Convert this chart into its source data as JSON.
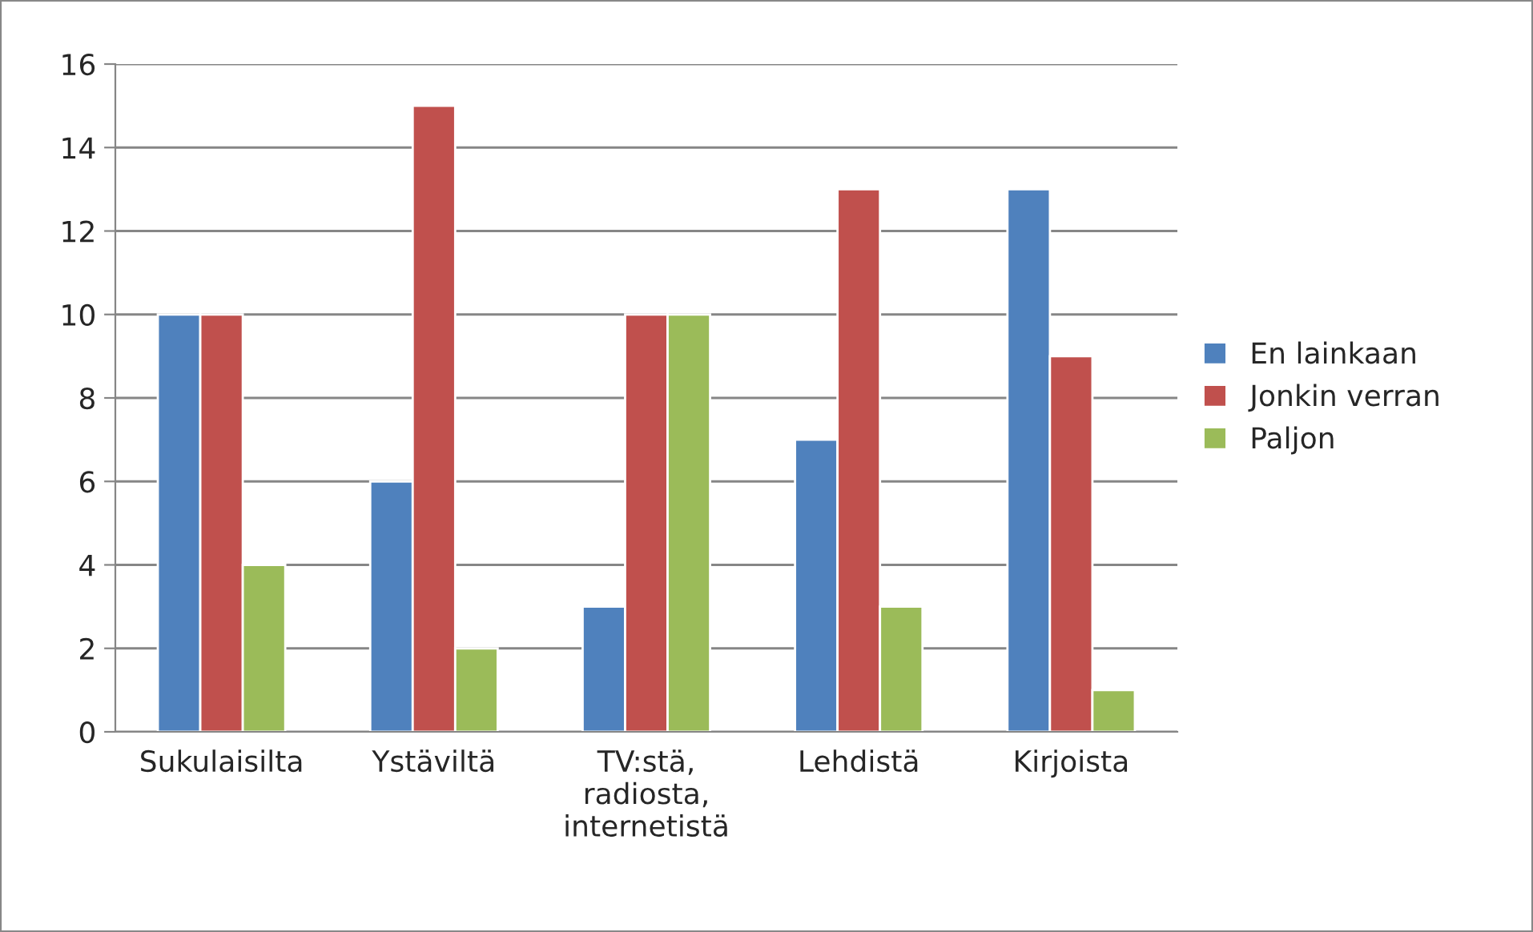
{
  "chart_data": {
    "type": "bar",
    "categories": [
      "Sukulaisilta",
      "Ystäviltä",
      "TV:stä,\nradiosta,\ninternetistä",
      "Lehdistä",
      "Kirjoista"
    ],
    "series": [
      {
        "name": "En lainkaan",
        "color": "#4f81bd",
        "values": [
          10,
          6,
          3,
          7,
          13
        ]
      },
      {
        "name": "Jonkin verran",
        "color": "#c0504d",
        "values": [
          10,
          15,
          10,
          13,
          9
        ]
      },
      {
        "name": "Paljon",
        "color": "#9bbb59",
        "values": [
          4,
          2,
          10,
          3,
          1
        ]
      }
    ],
    "ylim": [
      0,
      16
    ],
    "yticks": [
      0,
      2,
      4,
      6,
      8,
      10,
      12,
      14,
      16
    ],
    "grid": "y",
    "legend": "right"
  }
}
